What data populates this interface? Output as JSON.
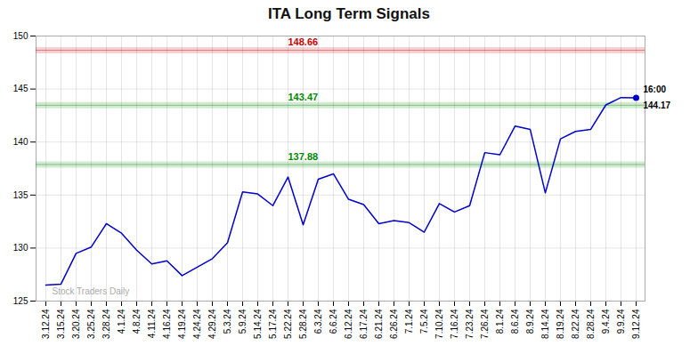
{
  "chart_data": {
    "type": "line",
    "title": "ITA Long Term Signals",
    "categories": [
      "3.12.24",
      "3.15.24",
      "3.20.24",
      "3.25.24",
      "3.28.24",
      "4.1.24",
      "4.8.24",
      "4.11.24",
      "4.16.24",
      "4.19.24",
      "4.24.24",
      "4.29.24",
      "5.3.24",
      "5.9.24",
      "5.14.24",
      "5.17.24",
      "5.22.24",
      "5.28.24",
      "6.3.24",
      "6.6.24",
      "6.12.24",
      "6.17.24",
      "6.21.24",
      "6.26.24",
      "7.1.24",
      "7.5.24",
      "7.10.24",
      "7.16.24",
      "7.23.24",
      "7.26.24",
      "8.1.24",
      "8.6.24",
      "8.9.24",
      "8.14.24",
      "8.19.24",
      "8.22.24",
      "8.28.24",
      "9.4.24",
      "9.9.24",
      "9.12.24"
    ],
    "values": [
      126.5,
      126.6,
      129.5,
      130.1,
      132.3,
      131.4,
      129.8,
      128.5,
      128.8,
      127.4,
      128.2,
      129.0,
      130.5,
      135.3,
      135.1,
      134.0,
      136.7,
      132.2,
      136.5,
      137.0,
      134.6,
      134.1,
      132.3,
      132.6,
      132.4,
      131.5,
      134.2,
      133.4,
      134.0,
      139.0,
      138.8,
      141.5,
      141.2,
      135.2,
      140.3,
      141.0,
      141.2,
      143.5,
      144.2,
      144.17
    ],
    "color": "#0000cc",
    "ylim": [
      125,
      150
    ],
    "yticks": [
      125,
      130,
      135,
      140,
      145,
      150
    ],
    "grid": true,
    "reference_lines": [
      {
        "y": 148.66,
        "color": "#cc0000"
      },
      {
        "y": 143.47,
        "color": "#008800"
      },
      {
        "y": 137.88,
        "color": "#008800"
      }
    ],
    "last_label": "16:00",
    "last_value": 144.17,
    "watermark": "Stock Traders Daily"
  }
}
